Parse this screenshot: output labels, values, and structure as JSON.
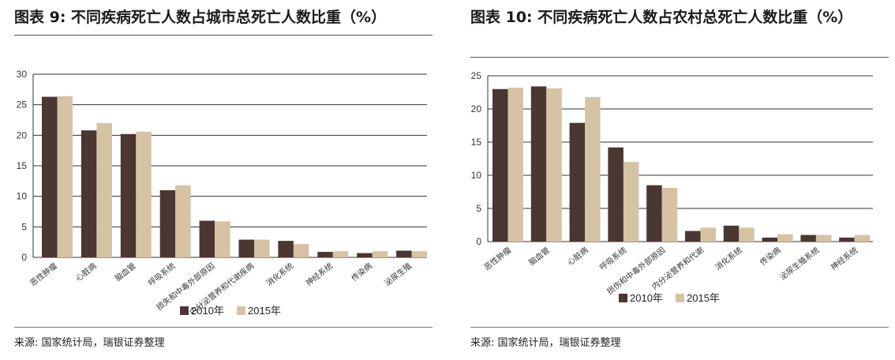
{
  "colors": {
    "series_2010": "#4a3731",
    "series_2015": "#d5c3a4",
    "grid": "#333333"
  },
  "source_left": "来源: 国家统计局，瑞银证券整理",
  "source_right": "来源: 国家统计局，瑞银证券整理",
  "chart_data": [
    {
      "type": "bar",
      "title": "图表 9: 不同疾病死亡人数占城市总死亡人数比重（%）",
      "categories": [
        "恶性肿瘤",
        "心脏病",
        "脑血管",
        "呼吸系统",
        "损失和中毒外部原因",
        "内分泌营养和代谢疾病",
        "消化系统",
        "神经系统",
        "传染病",
        "泌尿生殖"
      ],
      "series": [
        {
          "name": "2010年",
          "values": [
            26.3,
            20.8,
            20.2,
            11.0,
            6.0,
            2.9,
            2.7,
            0.9,
            0.7,
            1.1
          ]
        },
        {
          "name": "2015年",
          "values": [
            26.4,
            22.0,
            20.6,
            11.8,
            5.9,
            2.9,
            2.2,
            1.0,
            1.0,
            1.0
          ]
        }
      ],
      "yticks": [
        0,
        5,
        10,
        15,
        20,
        25,
        30
      ],
      "ylim": [
        0,
        30
      ],
      "legend": "bottom"
    },
    {
      "type": "bar",
      "title": "图表 10: 不同疾病死亡人数占农村总死亡人数比重（%）",
      "categories": [
        "恶性肿瘤",
        "脑血管",
        "心脏病",
        "呼吸系统",
        "损伤和中毒外部原因",
        "内分泌营养和代谢",
        "消化系统",
        "传染病",
        "泌尿生殖系统",
        "神经系统"
      ],
      "series": [
        {
          "name": "2010年",
          "values": [
            23.0,
            23.4,
            17.9,
            14.2,
            8.5,
            1.6,
            2.4,
            0.6,
            1.0,
            0.6
          ]
        },
        {
          "name": "2015年",
          "values": [
            23.2,
            23.1,
            21.8,
            12.0,
            8.1,
            2.1,
            2.1,
            1.1,
            1.0,
            1.0
          ]
        }
      ],
      "yticks": [
        0,
        5,
        10,
        15,
        20,
        25
      ],
      "ylim": [
        0,
        25
      ],
      "legend": "bottom"
    }
  ]
}
